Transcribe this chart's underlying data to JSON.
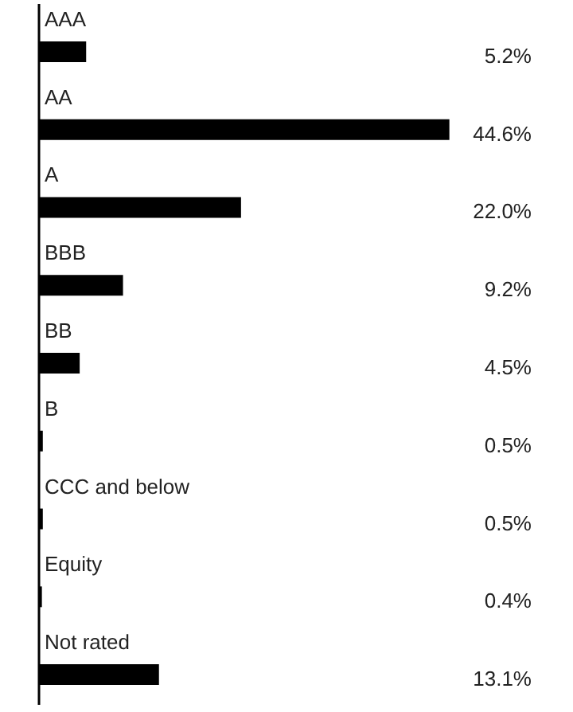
{
  "chart_data": {
    "type": "bar",
    "orientation": "horizontal",
    "categories": [
      "AAA",
      "AA",
      "A",
      "BBB",
      "BB",
      "B",
      "CCC and below",
      "Equity",
      "Not rated"
    ],
    "values": [
      5.2,
      44.6,
      22.0,
      9.2,
      4.5,
      0.5,
      0.5,
      0.4,
      13.1
    ],
    "value_labels": [
      "5.2%",
      "44.6%",
      "22.0%",
      "9.2%",
      "4.5%",
      "0.5%",
      "0.5%",
      "0.4%",
      "13.1%"
    ],
    "color": "#000000"
  }
}
